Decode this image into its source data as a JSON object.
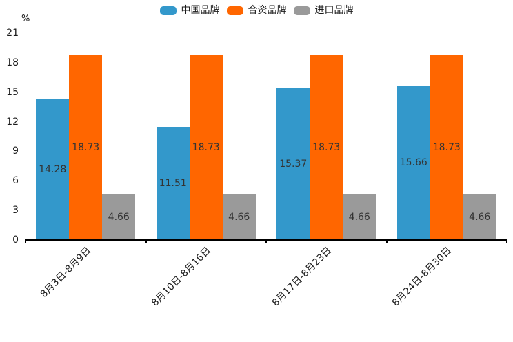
{
  "chart_data": {
    "type": "bar",
    "title": "",
    "xlabel": "",
    "ylabel": "%",
    "unit_label": "%",
    "categories": [
      "8月3日-8月9日",
      "8月10日-8月16日",
      "8月17日-8月23日",
      "8月24日-8月30日"
    ],
    "series": [
      {
        "name": "中国品牌",
        "slug": "china-brand",
        "color": "#3398CB",
        "values": [
          14.28,
          11.51,
          15.37,
          15.66
        ]
      },
      {
        "name": "合资品牌",
        "slug": "joint-venture-brand",
        "color": "#FF6600",
        "values": [
          18.73,
          18.73,
          18.73,
          18.73
        ]
      },
      {
        "name": "进口品牌",
        "slug": "import-brand",
        "color": "#9A9A9A",
        "values": [
          4.66,
          4.66,
          4.66,
          4.66
        ]
      }
    ],
    "ylim": [
      0,
      21
    ],
    "yticks": [
      0,
      3,
      6,
      9,
      12,
      15,
      18,
      21
    ],
    "grid": false,
    "legend_position": "top",
    "value_labels_visible": true,
    "value_label_decimals": 2,
    "colors": {
      "axis": "#000000",
      "tick_text": "#1a1a1a",
      "value_label_text": "#333333",
      "background": "#ffffff"
    }
  }
}
